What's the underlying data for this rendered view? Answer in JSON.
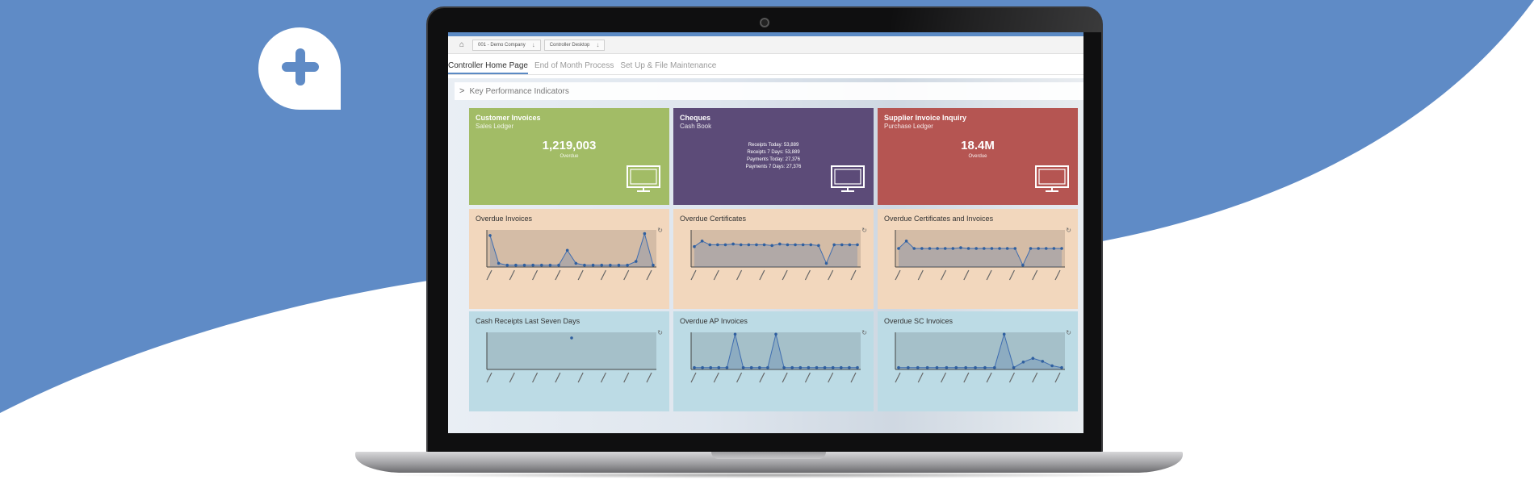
{
  "brand": {
    "logo_icon": "plus-speech-bubble-icon",
    "background_color": "#5f8bc6"
  },
  "shell": {
    "home_icon": "home-icon",
    "breadcrumbs": [
      {
        "label": "001 - Demo Company",
        "arrow": "↓"
      },
      {
        "label": "Controller Desktop",
        "arrow": "↓"
      }
    ]
  },
  "tabs": [
    {
      "label": "Controller Home Page",
      "active": true
    },
    {
      "label": "End of Month Process",
      "active": false
    },
    {
      "label": "Set Up & File Maintenance",
      "active": false
    }
  ],
  "kpi": {
    "label": "Key Performance Indicators",
    "chevron": ">"
  },
  "tiles": [
    {
      "title": "Customer Invoices",
      "subtitle": "Sales Ledger",
      "value": "1,219,003",
      "caption": "Overdue",
      "color": "#a2bc66",
      "icon": "monitor-icon"
    },
    {
      "title": "Cheques",
      "subtitle": "Cash Book",
      "lines": [
        "Receipts Today: 53,889",
        "Receipts 7 Days: 53,889",
        "Payments Today: 27,376",
        "Payments 7 Days: 27,376"
      ],
      "color": "#5c4b78",
      "icon": "monitor-icon"
    },
    {
      "title": "Supplier Invoice Inquiry",
      "subtitle": "Purchase Ledger",
      "value": "18.4M",
      "caption": "Overdue",
      "color": "#b55552",
      "icon": "monitor-icon"
    }
  ],
  "chart_tiles": [
    {
      "title": "Overdue Invoices",
      "color": "#f2d7bd",
      "refresh_icon": "refresh-icon"
    },
    {
      "title": "Overdue Certificates",
      "color": "#f2d7bd",
      "refresh_icon": "refresh-icon"
    },
    {
      "title": "Overdue Certificates and Invoices",
      "color": "#f2d7bd",
      "refresh_icon": "refresh-icon"
    },
    {
      "title": "Cash Receipts Last Seven Days",
      "color": "#bcdbe5",
      "refresh_icon": "refresh-icon"
    },
    {
      "title": "Overdue AP Invoices",
      "color": "#bcdbe5",
      "refresh_icon": "refresh-icon"
    },
    {
      "title": "Overdue SC Invoices",
      "color": "#bcdbe5",
      "refresh_icon": "refresh-icon"
    }
  ],
  "chart_data": [
    {
      "type": "area",
      "values": [
        0.85,
        0.1,
        0.05,
        0.05,
        0.05,
        0.05,
        0.05,
        0.05,
        0.05,
        0.45,
        0.1,
        0.05,
        0.05,
        0.05,
        0.05,
        0.05,
        0.05,
        0.15,
        0.9,
        0.05
      ]
    },
    {
      "type": "area",
      "values": [
        0.55,
        0.7,
        0.6,
        0.6,
        0.6,
        0.62,
        0.6,
        0.6,
        0.6,
        0.6,
        0.58,
        0.62,
        0.6,
        0.6,
        0.6,
        0.6,
        0.58,
        0.1,
        0.6,
        0.6,
        0.6,
        0.6
      ]
    },
    {
      "type": "area",
      "values": [
        0.5,
        0.7,
        0.5,
        0.5,
        0.5,
        0.5,
        0.5,
        0.5,
        0.52,
        0.5,
        0.5,
        0.5,
        0.5,
        0.5,
        0.5,
        0.5,
        0.05,
        0.5,
        0.5,
        0.5,
        0.5,
        0.5
      ]
    },
    {
      "type": "scatter",
      "values": [
        0.85
      ]
    },
    {
      "type": "area",
      "values": [
        0.05,
        0.05,
        0.05,
        0.05,
        0.05,
        0.95,
        0.05,
        0.05,
        0.05,
        0.05,
        0.95,
        0.05,
        0.05,
        0.05,
        0.05,
        0.05,
        0.05,
        0.05,
        0.05,
        0.05,
        0.05
      ]
    },
    {
      "type": "area",
      "values": [
        0.05,
        0.05,
        0.05,
        0.05,
        0.05,
        0.05,
        0.05,
        0.05,
        0.05,
        0.05,
        0.05,
        0.95,
        0.05,
        0.2,
        0.3,
        0.22,
        0.1,
        0.05
      ]
    }
  ]
}
